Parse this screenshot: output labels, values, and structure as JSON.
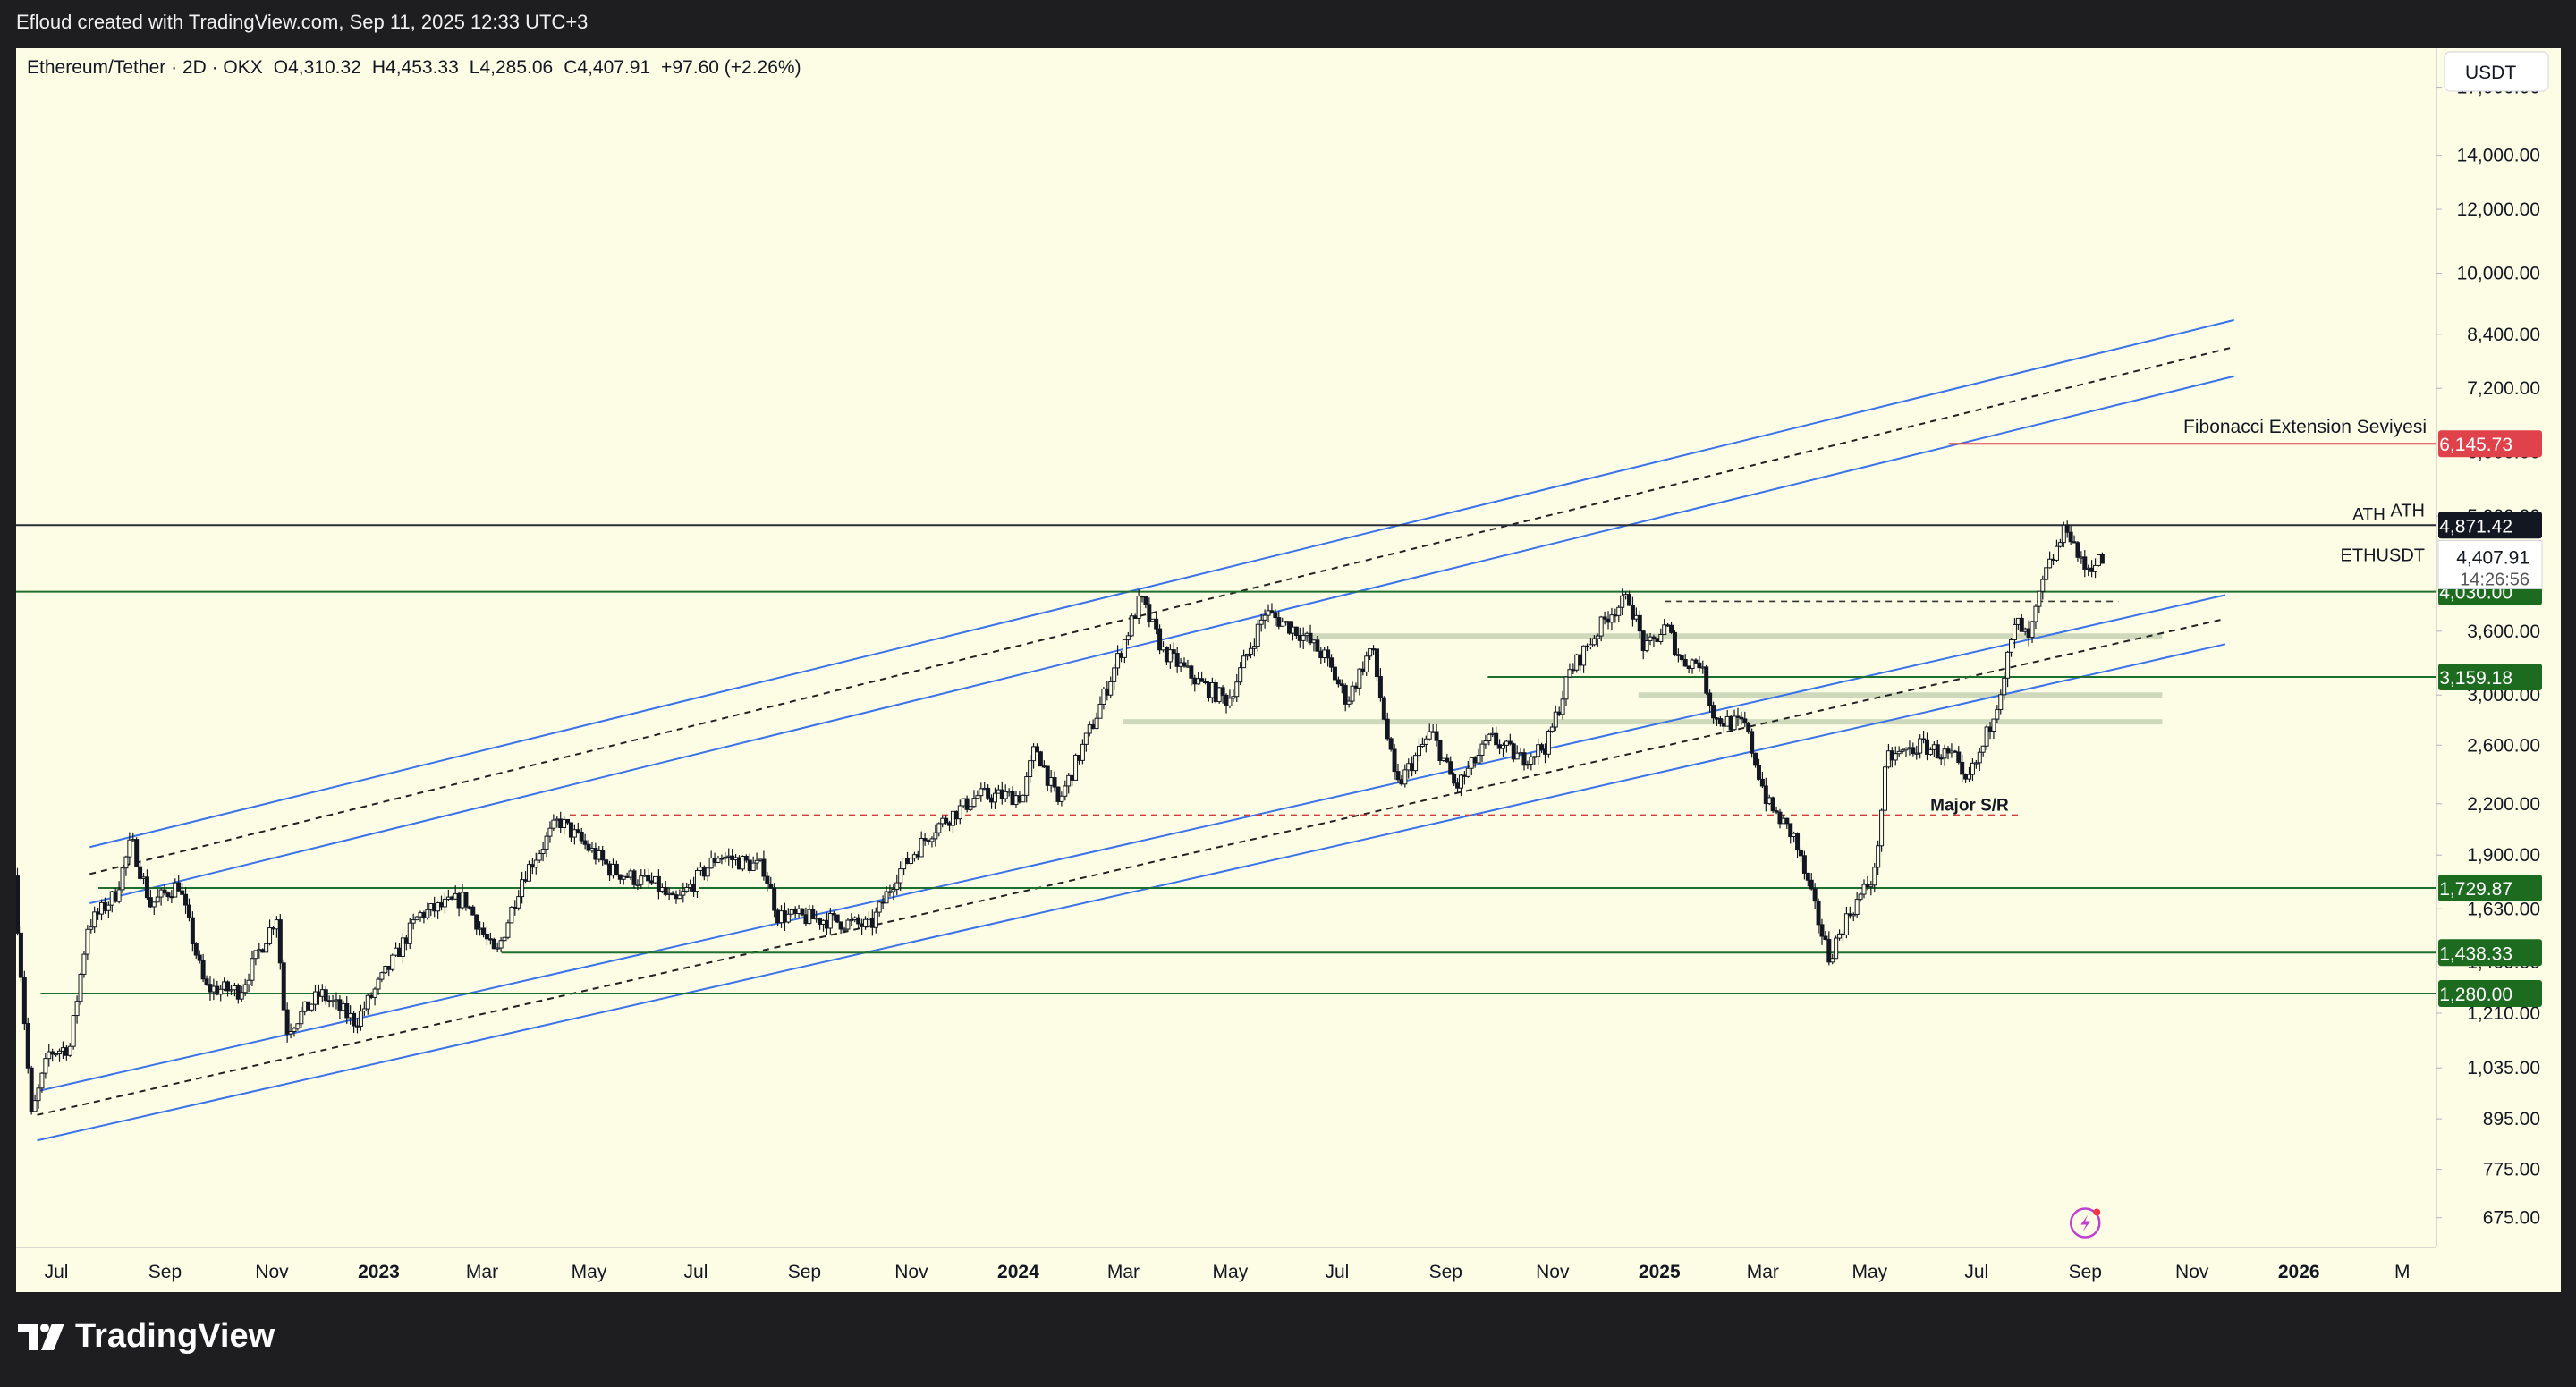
{
  "header": {
    "credit": "Efloud created with TradingView.com, Sep 11, 2025 12:33 UTC+3"
  },
  "legend": {
    "symbol": "Ethereum/Tether · 2D · OKX",
    "open": "O4,310.32",
    "high": "H4,453.33",
    "low": "L4,285.06",
    "close": "C4,407.91",
    "change": "+97.60 (+2.26%)"
  },
  "brand": {
    "name": "TradingView"
  },
  "chart_data": {
    "type": "candlestick",
    "title": "Ethereum/Tether · 2D · OKX",
    "currency": "USDT",
    "yscale": "log",
    "ylim": [
      620,
      19000
    ],
    "xlim": [
      "2022-06-08",
      "2026-03-20"
    ],
    "y_ticks": [
      675,
      775,
      895,
      1035,
      1210,
      1400,
      1630,
      1900,
      2200,
      2600,
      3000,
      3600,
      5000,
      6000,
      7200,
      8400,
      10000,
      12000,
      14000,
      17000
    ],
    "y_tick_labels": [
      "675.00",
      "775.00",
      "895.00",
      "1,035.00",
      "1,210.00",
      "1,400.00",
      "1,630.00",
      "1,900.00",
      "2,200.00",
      "2,600.00",
      "3,000.00",
      "3,600.00",
      "5,000.00",
      "6,000.00",
      "7,200.00",
      "8,400.00",
      "10,000.00",
      "12,000.00",
      "14,000.00",
      "17,000.00"
    ],
    "x_ticks": [
      {
        "date": "2022-07-01",
        "label": "Jul",
        "bold": false
      },
      {
        "date": "2022-09-01",
        "label": "Sep",
        "bold": false
      },
      {
        "date": "2022-11-01",
        "label": "Nov",
        "bold": false
      },
      {
        "date": "2023-01-01",
        "label": "2023",
        "bold": true
      },
      {
        "date": "2023-03-01",
        "label": "Mar",
        "bold": false
      },
      {
        "date": "2023-05-01",
        "label": "May",
        "bold": false
      },
      {
        "date": "2023-07-01",
        "label": "Jul",
        "bold": false
      },
      {
        "date": "2023-09-01",
        "label": "Sep",
        "bold": false
      },
      {
        "date": "2023-11-01",
        "label": "Nov",
        "bold": false
      },
      {
        "date": "2024-01-01",
        "label": "2024",
        "bold": true
      },
      {
        "date": "2024-03-01",
        "label": "Mar",
        "bold": false
      },
      {
        "date": "2024-05-01",
        "label": "May",
        "bold": false
      },
      {
        "date": "2024-07-01",
        "label": "Jul",
        "bold": false
      },
      {
        "date": "2024-09-01",
        "label": "Sep",
        "bold": false
      },
      {
        "date": "2024-11-01",
        "label": "Nov",
        "bold": false
      },
      {
        "date": "2025-01-01",
        "label": "2025",
        "bold": true
      },
      {
        "date": "2025-03-01",
        "label": "Mar",
        "bold": false
      },
      {
        "date": "2025-05-01",
        "label": "May",
        "bold": false
      },
      {
        "date": "2025-07-01",
        "label": "Jul",
        "bold": false
      },
      {
        "date": "2025-09-01",
        "label": "Sep",
        "bold": false
      },
      {
        "date": "2025-11-01",
        "label": "Nov",
        "bold": false
      },
      {
        "date": "2026-01-01",
        "label": "2026",
        "bold": true
      },
      {
        "date": "2026-03-01",
        "label": "M",
        "bold": false
      }
    ],
    "price_series": [
      {
        "date": "2022-06-08",
        "price": 1790
      },
      {
        "date": "2022-06-18",
        "price": 900
      },
      {
        "date": "2022-06-28",
        "price": 1080
      },
      {
        "date": "2022-07-10",
        "price": 1100
      },
      {
        "date": "2022-07-20",
        "price": 1550
      },
      {
        "date": "2022-08-05",
        "price": 1700
      },
      {
        "date": "2022-08-14",
        "price": 1980
      },
      {
        "date": "2022-08-25",
        "price": 1650
      },
      {
        "date": "2022-09-10",
        "price": 1750
      },
      {
        "date": "2022-09-25",
        "price": 1300
      },
      {
        "date": "2022-10-15",
        "price": 1290
      },
      {
        "date": "2022-11-05",
        "price": 1600
      },
      {
        "date": "2022-11-10",
        "price": 1150
      },
      {
        "date": "2022-11-30",
        "price": 1280
      },
      {
        "date": "2022-12-20",
        "price": 1180
      },
      {
        "date": "2023-01-10",
        "price": 1400
      },
      {
        "date": "2023-01-25",
        "price": 1600
      },
      {
        "date": "2023-02-20",
        "price": 1680
      },
      {
        "date": "2023-03-10",
        "price": 1420
      },
      {
        "date": "2023-03-25",
        "price": 1780
      },
      {
        "date": "2023-04-15",
        "price": 2100
      },
      {
        "date": "2023-05-15",
        "price": 1820
      },
      {
        "date": "2023-06-10",
        "price": 1740
      },
      {
        "date": "2023-06-20",
        "price": 1650
      },
      {
        "date": "2023-07-15",
        "price": 1900
      },
      {
        "date": "2023-08-10",
        "price": 1830
      },
      {
        "date": "2023-08-18",
        "price": 1600
      },
      {
        "date": "2023-09-15",
        "price": 1580
      },
      {
        "date": "2023-10-10",
        "price": 1550
      },
      {
        "date": "2023-10-25",
        "price": 1800
      },
      {
        "date": "2023-11-15",
        "price": 2050
      },
      {
        "date": "2023-12-10",
        "price": 2250
      },
      {
        "date": "2024-01-05",
        "price": 2250
      },
      {
        "date": "2024-01-12",
        "price": 2600
      },
      {
        "date": "2024-01-25",
        "price": 2200
      },
      {
        "date": "2024-02-15",
        "price": 2800
      },
      {
        "date": "2024-03-12",
        "price": 3950
      },
      {
        "date": "2024-03-25",
        "price": 3400
      },
      {
        "date": "2024-04-15",
        "price": 3100
      },
      {
        "date": "2024-05-01",
        "price": 2950
      },
      {
        "date": "2024-05-22",
        "price": 3800
      },
      {
        "date": "2024-06-10",
        "price": 3600
      },
      {
        "date": "2024-06-25",
        "price": 3350
      },
      {
        "date": "2024-07-08",
        "price": 2950
      },
      {
        "date": "2024-07-22",
        "price": 3450
      },
      {
        "date": "2024-08-05",
        "price": 2300
      },
      {
        "date": "2024-08-25",
        "price": 2700
      },
      {
        "date": "2024-09-08",
        "price": 2300
      },
      {
        "date": "2024-09-28",
        "price": 2650
      },
      {
        "date": "2024-10-15",
        "price": 2500
      },
      {
        "date": "2024-10-30",
        "price": 2600
      },
      {
        "date": "2024-11-12",
        "price": 3200
      },
      {
        "date": "2024-12-05",
        "price": 3800
      },
      {
        "date": "2024-12-16",
        "price": 3950
      },
      {
        "date": "2024-12-25",
        "price": 3400
      },
      {
        "date": "2025-01-06",
        "price": 3650
      },
      {
        "date": "2025-01-15",
        "price": 3300
      },
      {
        "date": "2025-01-25",
        "price": 3300
      },
      {
        "date": "2025-02-03",
        "price": 2800
      },
      {
        "date": "2025-02-20",
        "price": 2750
      },
      {
        "date": "2025-03-05",
        "price": 2200
      },
      {
        "date": "2025-03-20",
        "price": 2000
      },
      {
        "date": "2025-04-09",
        "price": 1420
      },
      {
        "date": "2025-04-20",
        "price": 1600
      },
      {
        "date": "2025-05-05",
        "price": 1800
      },
      {
        "date": "2025-05-12",
        "price": 2500
      },
      {
        "date": "2025-06-01",
        "price": 2600
      },
      {
        "date": "2025-06-20",
        "price": 2500
      },
      {
        "date": "2025-06-25",
        "price": 2300
      },
      {
        "date": "2025-07-05",
        "price": 2550
      },
      {
        "date": "2025-07-15",
        "price": 3000
      },
      {
        "date": "2025-07-25",
        "price": 3700
      },
      {
        "date": "2025-08-01",
        "price": 3500
      },
      {
        "date": "2025-08-10",
        "price": 4200
      },
      {
        "date": "2025-08-23",
        "price": 4870
      },
      {
        "date": "2025-09-01",
        "price": 4300
      },
      {
        "date": "2025-09-11",
        "price": 4407.91
      }
    ],
    "channels": [
      {
        "name": "upper",
        "start": {
          "date": "2022-07-20",
          "price": 1800
        },
        "end": {
          "date": "2025-11-25",
          "price": 8100
        },
        "width_pct": 8,
        "mid_line": "dashed"
      },
      {
        "name": "lower",
        "start": {
          "date": "2022-06-20",
          "price": 905
        },
        "end": {
          "date": "2025-11-20",
          "price": 3730
        },
        "width_pct": 7,
        "mid_line": "dashed"
      }
    ],
    "horizontal_lines": [
      {
        "price": 4871.42,
        "color": "#2a2e39",
        "style": "solid",
        "from": "2022-06-08",
        "label": "4,871.42",
        "label_bg": "#131722",
        "text": "ATH"
      },
      {
        "price": 4030.0,
        "color": "#1e6e2e",
        "style": "solid",
        "from": "2022-06-08",
        "label": "4,030.00",
        "label_bg": "#1d6b1f"
      },
      {
        "price": 3159.18,
        "color": "#1e6e2e",
        "style": "solid",
        "from": "2024-09-25",
        "label": "3,159.18",
        "label_bg": "#1d6b1f"
      },
      {
        "price": 1729.87,
        "color": "#1e6e2e",
        "style": "solid",
        "from": "2022-07-25",
        "label": "1,729.87",
        "label_bg": "#1d6b1f"
      },
      {
        "price": 1438.33,
        "color": "#1e6e2e",
        "style": "solid",
        "from": "2023-03-12",
        "label": "1,438.33",
        "label_bg": "#1d6b1f"
      },
      {
        "price": 1280.0,
        "color": "#1e6e2e",
        "style": "solid",
        "from": "2022-06-22",
        "label": "1,280.00",
        "label_bg": "#1d6b1f"
      },
      {
        "price": 6145.73,
        "color": "#e0424c",
        "style": "solid",
        "from": "2025-06-15",
        "label": "6,145.73",
        "label_bg": "#e0424c",
        "text": "Fibonacci Extension Seviyesi"
      }
    ],
    "dashed_lines": [
      {
        "price": 2130,
        "from": "2023-04-20",
        "to": "2025-07-25",
        "color": "#d23c3c"
      },
      {
        "price": 3920,
        "from": "2025-01-04",
        "to": "2025-09-20",
        "color": "#333333"
      }
    ],
    "zones": [
      {
        "price": 3550,
        "from": "2024-06-10",
        "to": "2025-10-15"
      },
      {
        "price": 3000,
        "from": "2024-12-20",
        "to": "2025-10-15"
      },
      {
        "price": 2780,
        "from": "2024-03-01",
        "to": "2025-10-15"
      }
    ],
    "annotations": [
      {
        "text": "Major S/R",
        "date": "2025-06-27",
        "price": 2195
      },
      {
        "text": "ATH",
        "date": "2026-02-10",
        "price": 5030
      }
    ],
    "last_price": {
      "label": "4,407.91",
      "symbol": "ETHUSDT",
      "countdown": "14:26:56"
    },
    "grid": false,
    "legend_position": "top-left"
  }
}
